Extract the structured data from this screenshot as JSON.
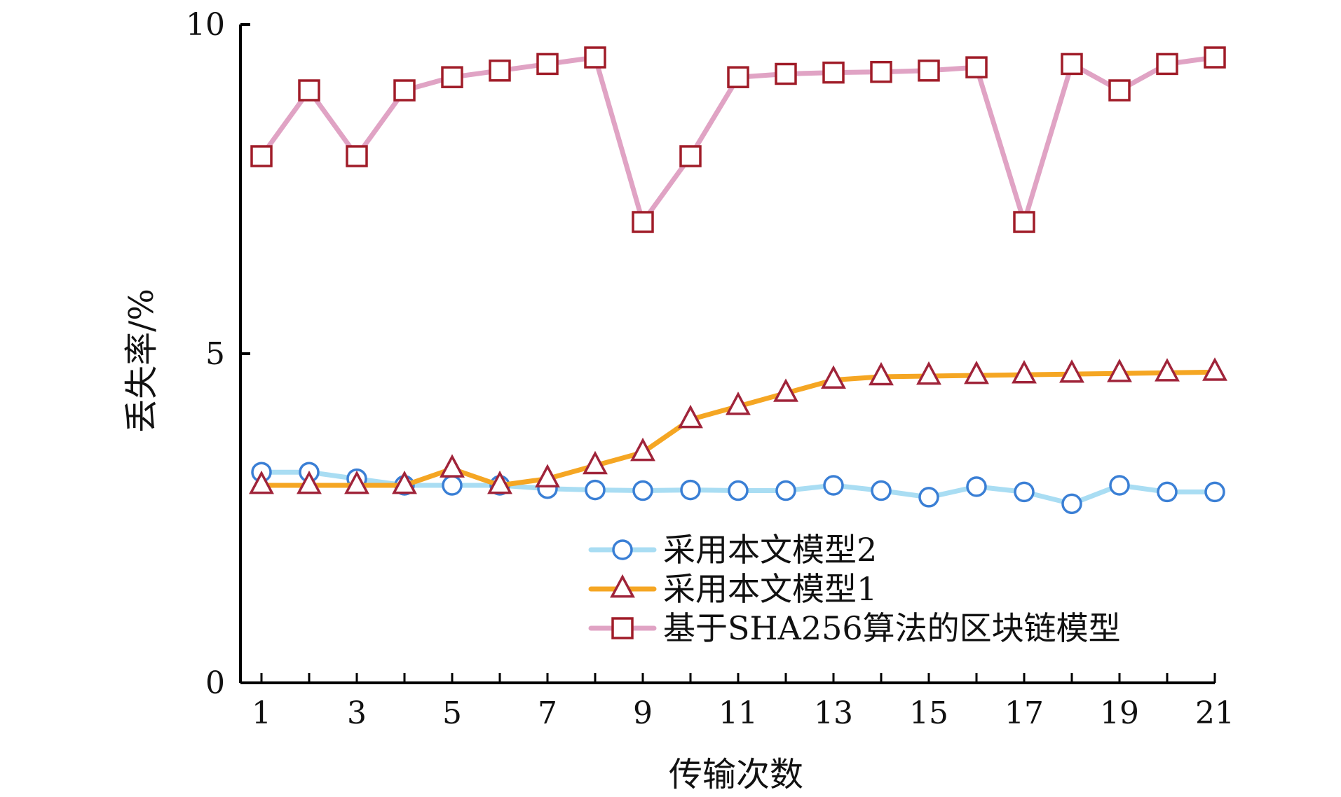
{
  "chart_data": {
    "type": "line",
    "title": "",
    "xlabel": "传输次数",
    "ylabel": "丢失率/%",
    "x": [
      1,
      2,
      3,
      4,
      5,
      6,
      7,
      8,
      9,
      10,
      11,
      12,
      13,
      14,
      15,
      16,
      17,
      18,
      19,
      20,
      21
    ],
    "x_tick_labels": [
      "1",
      "3",
      "5",
      "7",
      "9",
      "11",
      "13",
      "15",
      "17",
      "19",
      "21"
    ],
    "y_tick_labels": [
      "0",
      "5",
      "10"
    ],
    "xlim": [
      0.5,
      21
    ],
    "ylim": [
      0,
      10
    ],
    "grid": false,
    "legend_position": "bottom-right",
    "series": [
      {
        "name": "采用本文模型2",
        "marker": "circle",
        "line_color": "#a9ddf3",
        "marker_color": "#3a7fd5",
        "values": [
          3.2,
          3.2,
          3.1,
          3.0,
          3.0,
          3.0,
          2.95,
          2.93,
          2.92,
          2.93,
          2.92,
          2.92,
          3.0,
          2.92,
          2.82,
          2.98,
          2.9,
          2.72,
          3.0,
          2.9,
          2.9
        ]
      },
      {
        "name": "采用本文模型1",
        "marker": "triangle",
        "line_color": "#f5a623",
        "marker_color": "#a0243a",
        "values": [
          3.0,
          3.0,
          3.0,
          3.0,
          3.25,
          3.0,
          3.1,
          3.3,
          3.5,
          4.0,
          4.2,
          4.4,
          4.6,
          4.65,
          4.66,
          4.67,
          4.68,
          4.69,
          4.7,
          4.71,
          4.72
        ]
      },
      {
        "name": "基于SHA256算法的区块链模型",
        "marker": "square",
        "line_color": "#e0a3c4",
        "marker_color": "#a01c28",
        "values": [
          8.0,
          9.0,
          8.0,
          9.0,
          9.2,
          9.3,
          9.4,
          9.5,
          7.0,
          8.0,
          9.2,
          9.25,
          9.27,
          9.28,
          9.3,
          9.35,
          7.0,
          9.4,
          9.0,
          9.4,
          9.5
        ]
      }
    ]
  }
}
